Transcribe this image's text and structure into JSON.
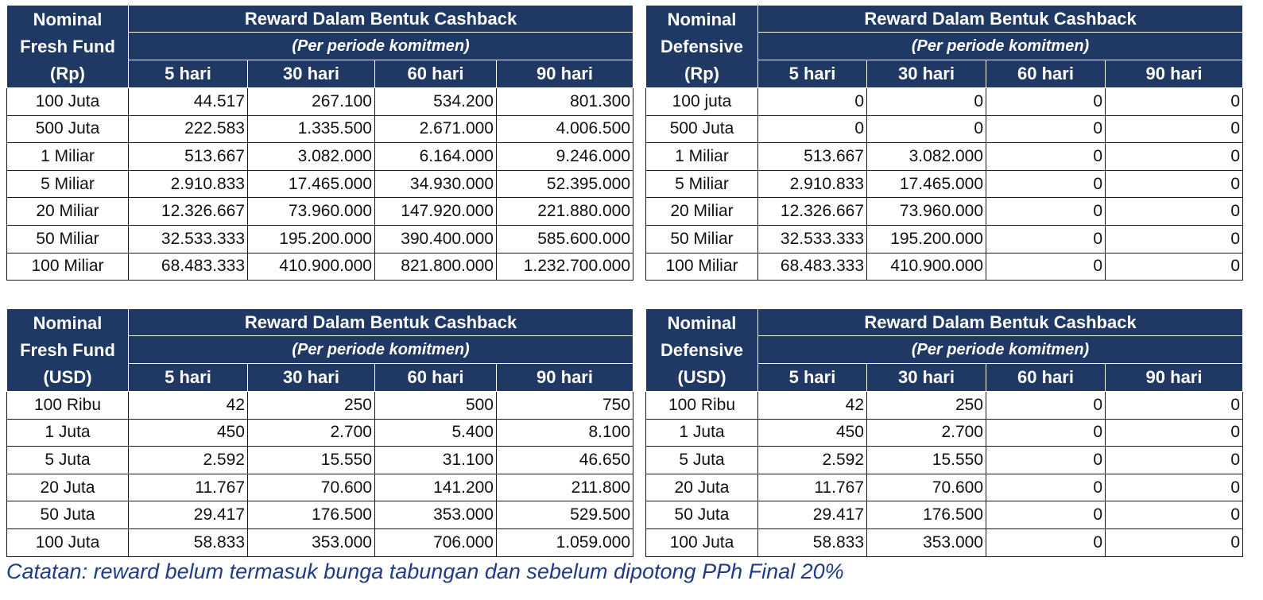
{
  "tables": [
    {
      "nominal_header": [
        "Nominal",
        "Fresh Fund",
        "(Rp)"
      ],
      "reward_title": "Reward Dalam Bentuk Cashback",
      "reward_subtitle": "(Per periode komitmen)",
      "periods": [
        "5 hari",
        "30 hari",
        "60 hari",
        "90 hari"
      ],
      "rows": [
        {
          "nominal": "100 Juta",
          "values": [
            "44.517",
            "267.100",
            "534.200",
            "801.300"
          ]
        },
        {
          "nominal": "500 Juta",
          "values": [
            "222.583",
            "1.335.500",
            "2.671.000",
            "4.006.500"
          ]
        },
        {
          "nominal": "1 Miliar",
          "values": [
            "513.667",
            "3.082.000",
            "6.164.000",
            "9.246.000"
          ]
        },
        {
          "nominal": "5 Miliar",
          "values": [
            "2.910.833",
            "17.465.000",
            "34.930.000",
            "52.395.000"
          ]
        },
        {
          "nominal": "20 Miliar",
          "values": [
            "12.326.667",
            "73.960.000",
            "147.920.000",
            "221.880.000"
          ]
        },
        {
          "nominal": "50 Miliar",
          "values": [
            "32.533.333",
            "195.200.000",
            "390.400.000",
            "585.600.000"
          ]
        },
        {
          "nominal": "100 Miliar",
          "values": [
            "68.483.333",
            "410.900.000",
            "821.800.000",
            "1.232.700.000"
          ]
        }
      ]
    },
    {
      "nominal_header": [
        "Nominal",
        "Defensive",
        "(Rp)"
      ],
      "reward_title": "Reward Dalam Bentuk Cashback",
      "reward_subtitle": "(Per periode komitmen)",
      "periods": [
        "5 hari",
        "30 hari",
        "60 hari",
        "90 hari"
      ],
      "rows": [
        {
          "nominal": "100 juta",
          "values": [
            "0",
            "0",
            "0",
            "0"
          ]
        },
        {
          "nominal": "500 Juta",
          "values": [
            "0",
            "0",
            "0",
            "0"
          ]
        },
        {
          "nominal": "1 Miliar",
          "values": [
            "513.667",
            "3.082.000",
            "0",
            "0"
          ]
        },
        {
          "nominal": "5 Miliar",
          "values": [
            "2.910.833",
            "17.465.000",
            "0",
            "0"
          ]
        },
        {
          "nominal": "20 Miliar",
          "values": [
            "12.326.667",
            "73.960.000",
            "0",
            "0"
          ]
        },
        {
          "nominal": "50 Miliar",
          "values": [
            "32.533.333",
            "195.200.000",
            "0",
            "0"
          ]
        },
        {
          "nominal": "100 Miliar",
          "values": [
            "68.483.333",
            "410.900.000",
            "0",
            "0"
          ]
        }
      ]
    },
    {
      "nominal_header": [
        "Nominal",
        "Fresh Fund",
        "(USD)"
      ],
      "reward_title": "Reward Dalam Bentuk Cashback",
      "reward_subtitle": "(Per periode komitmen)",
      "periods": [
        "5 hari",
        "30 hari",
        "60 hari",
        "90 hari"
      ],
      "rows": [
        {
          "nominal": "100 Ribu",
          "values": [
            "42",
            "250",
            "500",
            "750"
          ]
        },
        {
          "nominal": "1 Juta",
          "values": [
            "450",
            "2.700",
            "5.400",
            "8.100"
          ]
        },
        {
          "nominal": "5 Juta",
          "values": [
            "2.592",
            "15.550",
            "31.100",
            "46.650"
          ]
        },
        {
          "nominal": "20 Juta",
          "values": [
            "11.767",
            "70.600",
            "141.200",
            "211.800"
          ]
        },
        {
          "nominal": "50 Juta",
          "values": [
            "29.417",
            "176.500",
            "353.000",
            "529.500"
          ]
        },
        {
          "nominal": "100 Juta",
          "values": [
            "58.833",
            "353.000",
            "706.000",
            "1.059.000"
          ]
        }
      ]
    },
    {
      "nominal_header": [
        "Nominal",
        "Defensive",
        "(USD)"
      ],
      "reward_title": "Reward Dalam Bentuk Cashback",
      "reward_subtitle": "(Per periode komitmen)",
      "periods": [
        "5 hari",
        "30 hari",
        "60 hari",
        "90 hari"
      ],
      "rows": [
        {
          "nominal": "100 Ribu",
          "values": [
            "42",
            "250",
            "0",
            "0"
          ]
        },
        {
          "nominal": "1 Juta",
          "values": [
            "450",
            "2.700",
            "0",
            "0"
          ]
        },
        {
          "nominal": "5 Juta",
          "values": [
            "2.592",
            "15.550",
            "0",
            "0"
          ]
        },
        {
          "nominal": "20 Juta",
          "values": [
            "11.767",
            "70.600",
            "0",
            "0"
          ]
        },
        {
          "nominal": "50 Juta",
          "values": [
            "29.417",
            "176.500",
            "0",
            "0"
          ]
        },
        {
          "nominal": "100 Juta",
          "values": [
            "58.833",
            "353.000",
            "0",
            "0"
          ]
        }
      ]
    }
  ],
  "note": "Catatan: reward belum termasuk bunga tabungan dan sebelum dipotong PPh Final 20%",
  "colors": {
    "header_bg": "#1f3864",
    "header_text": "#ffffff",
    "note_text": "#1f3a8a"
  }
}
